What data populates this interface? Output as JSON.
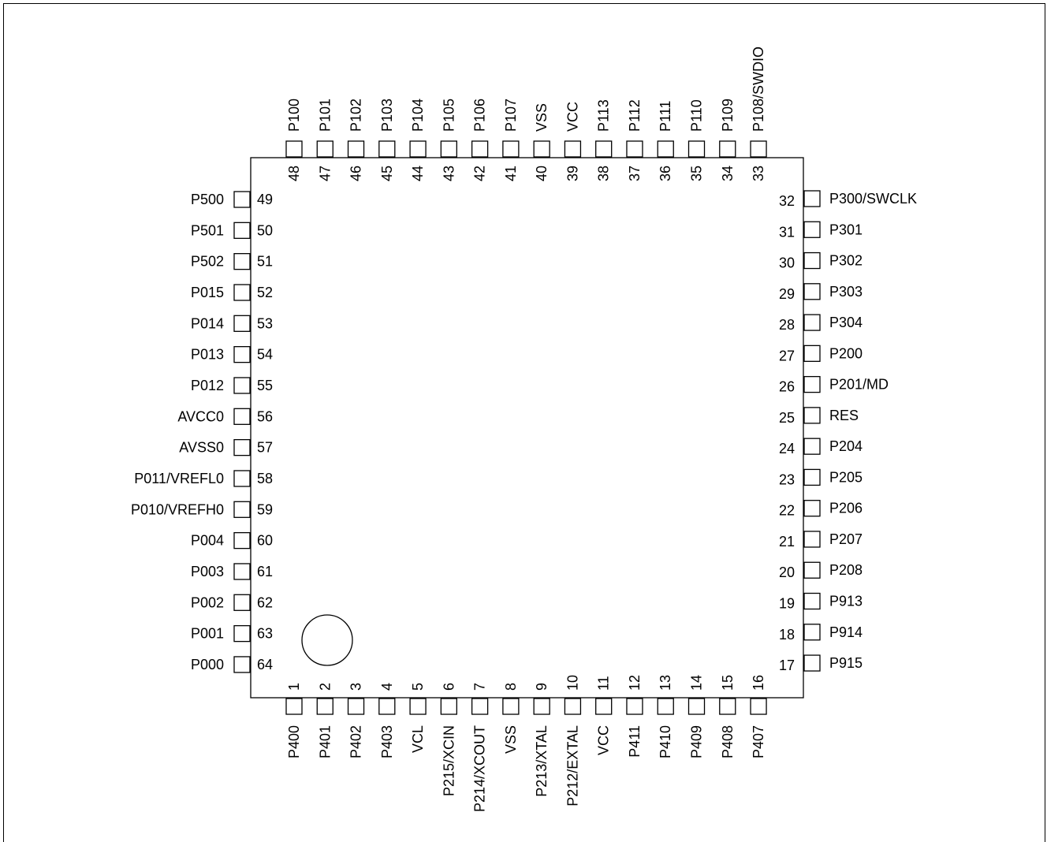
{
  "package": {
    "pins_left": [
      {
        "num": "49",
        "name": "P500"
      },
      {
        "num": "50",
        "name": "P501"
      },
      {
        "num": "51",
        "name": "P502"
      },
      {
        "num": "52",
        "name": "P015"
      },
      {
        "num": "53",
        "name": "P014"
      },
      {
        "num": "54",
        "name": "P013"
      },
      {
        "num": "55",
        "name": "P012"
      },
      {
        "num": "56",
        "name": "AVCC0"
      },
      {
        "num": "57",
        "name": "AVSS0"
      },
      {
        "num": "58",
        "name": "P011/VREFL0"
      },
      {
        "num": "59",
        "name": "P010/VREFH0"
      },
      {
        "num": "60",
        "name": "P004"
      },
      {
        "num": "61",
        "name": "P003"
      },
      {
        "num": "62",
        "name": "P002"
      },
      {
        "num": "63",
        "name": "P001"
      },
      {
        "num": "64",
        "name": "P000"
      }
    ],
    "pins_bottom": [
      {
        "num": "1",
        "name": "P400"
      },
      {
        "num": "2",
        "name": "P401"
      },
      {
        "num": "3",
        "name": "P402"
      },
      {
        "num": "4",
        "name": "P403"
      },
      {
        "num": "5",
        "name": "VCL"
      },
      {
        "num": "6",
        "name": "P215/XCIN"
      },
      {
        "num": "7",
        "name": "P214/XCOUT"
      },
      {
        "num": "8",
        "name": "VSS"
      },
      {
        "num": "9",
        "name": "P213/XTAL"
      },
      {
        "num": "10",
        "name": "P212/EXTAL"
      },
      {
        "num": "11",
        "name": "VCC"
      },
      {
        "num": "12",
        "name": "P411"
      },
      {
        "num": "13",
        "name": "P410"
      },
      {
        "num": "14",
        "name": "P409"
      },
      {
        "num": "15",
        "name": "P408"
      },
      {
        "num": "16",
        "name": "P407"
      }
    ],
    "pins_right": [
      {
        "num": "32",
        "name": "P300/SWCLK"
      },
      {
        "num": "31",
        "name": "P301"
      },
      {
        "num": "30",
        "name": "P302"
      },
      {
        "num": "29",
        "name": "P303"
      },
      {
        "num": "28",
        "name": "P304"
      },
      {
        "num": "27",
        "name": "P200"
      },
      {
        "num": "26",
        "name": "P201/MD"
      },
      {
        "num": "25",
        "name": "RES"
      },
      {
        "num": "24",
        "name": "P204"
      },
      {
        "num": "23",
        "name": "P205"
      },
      {
        "num": "22",
        "name": "P206"
      },
      {
        "num": "21",
        "name": "P207"
      },
      {
        "num": "20",
        "name": "P208"
      },
      {
        "num": "19",
        "name": "P913"
      },
      {
        "num": "18",
        "name": "P914"
      },
      {
        "num": "17",
        "name": "P915"
      }
    ],
    "pins_top": [
      {
        "num": "48",
        "name": "P100"
      },
      {
        "num": "47",
        "name": "P101"
      },
      {
        "num": "46",
        "name": "P102"
      },
      {
        "num": "45",
        "name": "P103"
      },
      {
        "num": "44",
        "name": "P104"
      },
      {
        "num": "43",
        "name": "P105"
      },
      {
        "num": "42",
        "name": "P106"
      },
      {
        "num": "41",
        "name": "P107"
      },
      {
        "num": "40",
        "name": "VSS"
      },
      {
        "num": "39",
        "name": "VCC"
      },
      {
        "num": "38",
        "name": "P113"
      },
      {
        "num": "37",
        "name": "P112"
      },
      {
        "num": "36",
        "name": "P111"
      },
      {
        "num": "35",
        "name": "P110"
      },
      {
        "num": "34",
        "name": "P109"
      },
      {
        "num": "33",
        "name": "P108/SWDIO"
      }
    ]
  }
}
